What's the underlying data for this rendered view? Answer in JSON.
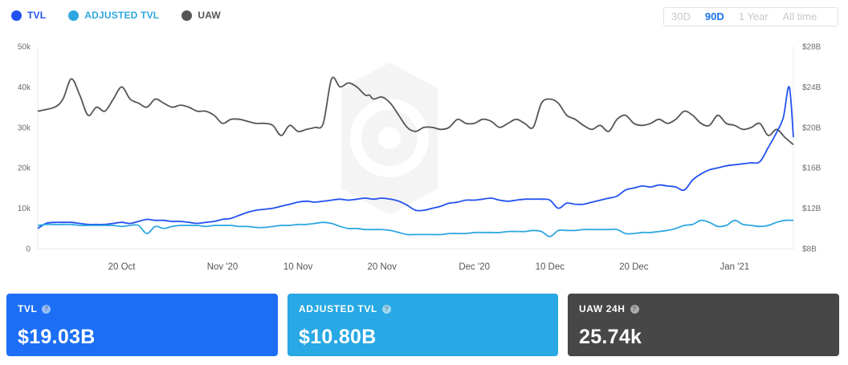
{
  "legend": [
    {
      "label": "TVL",
      "color": "#2251f0"
    },
    {
      "label": "ADJUSTED TVL",
      "color": "#2ea7e0"
    },
    {
      "label": "UAW",
      "color": "#555555"
    }
  ],
  "ranges": [
    {
      "label": "30D",
      "active": false
    },
    {
      "label": "90D",
      "active": true
    },
    {
      "label": "1 Year",
      "active": false
    },
    {
      "label": "All time",
      "active": false
    }
  ],
  "cards": [
    {
      "label": "TVL",
      "value": "$19.03B",
      "color": "#1c6ff5"
    },
    {
      "label": "ADJUSTED TVL",
      "value": "$10.80B",
      "color": "#28a8e4"
    },
    {
      "label": "UAW 24H",
      "value": "25.74k",
      "color": "#474747"
    }
  ],
  "chart_data": {
    "type": "line",
    "x_ticks": [
      {
        "label": "20 Oct",
        "day": 10
      },
      {
        "label": "Nov '20",
        "day": 22
      },
      {
        "label": "10 Nov",
        "day": 31
      },
      {
        "label": "20 Nov",
        "day": 41
      },
      {
        "label": "Dec '20",
        "day": 52
      },
      {
        "label": "10 Dec",
        "day": 61
      },
      {
        "label": "20 Dec",
        "day": 71
      },
      {
        "label": "Jan '21",
        "day": 83
      }
    ],
    "x_range": [
      0,
      90
    ],
    "left_axis": {
      "ticks": [
        "0",
        "10k",
        "20k",
        "30k",
        "40k",
        "50k"
      ],
      "range": [
        0,
        50000
      ]
    },
    "right_axis": {
      "ticks": [
        "$8B",
        "$12B",
        "$16B",
        "$20B",
        "$24B",
        "$28B"
      ],
      "range": [
        8,
        28
      ]
    },
    "series": [
      {
        "name": "UAW",
        "axis": "left",
        "color": "#555555",
        "x": [
          0,
          2,
          3,
          4,
          5,
          6,
          7,
          8,
          9,
          10,
          11,
          12,
          13,
          14,
          15,
          16,
          17,
          18,
          19,
          20,
          21,
          22,
          23,
          24,
          25,
          26,
          27,
          28,
          29,
          30,
          31,
          32,
          33,
          34,
          35,
          36,
          37,
          38,
          39,
          39.5,
          40,
          41,
          42,
          43,
          44,
          45,
          46,
          47,
          48,
          49,
          50,
          51,
          52,
          53,
          54,
          55,
          56,
          57,
          58,
          59,
          60,
          61,
          62,
          63,
          64,
          65,
          66,
          67,
          68,
          69,
          70,
          71,
          72,
          73,
          74,
          75,
          76,
          77,
          78,
          79,
          80,
          81,
          82,
          83,
          84,
          85,
          86,
          87,
          88,
          89,
          90
        ],
        "values": [
          34000,
          35000,
          37000,
          42000,
          38000,
          33000,
          35000,
          34000,
          37000,
          40000,
          37000,
          36000,
          35000,
          37000,
          36000,
          35000,
          35500,
          35000,
          34000,
          34000,
          33000,
          31000,
          32000,
          32000,
          31500,
          31000,
          31000,
          30500,
          28000,
          30500,
          29000,
          29500,
          30000,
          31000,
          42000,
          40000,
          41000,
          40000,
          38000,
          38000,
          37000,
          37500,
          36000,
          33000,
          30000,
          29000,
          30000,
          30000,
          29500,
          30000,
          32000,
          31000,
          31000,
          32000,
          31500,
          30000,
          31000,
          32000,
          31000,
          30000,
          36000,
          37000,
          36000,
          33000,
          32000,
          30500,
          29500,
          30500,
          29000,
          32000,
          33000,
          31000,
          30500,
          31000,
          32000,
          31000,
          32000,
          34000,
          33000,
          31000,
          30500,
          33000,
          31000,
          30500,
          29500,
          30000,
          31000,
          28000,
          29500,
          27500,
          25740
        ]
      },
      {
        "name": "TVL",
        "axis": "right",
        "color": "#2251f0",
        "x": [
          0,
          1,
          2,
          3,
          4,
          5,
          6,
          7,
          8,
          9,
          10,
          11,
          12,
          13,
          14,
          15,
          16,
          17,
          18,
          19,
          20,
          21,
          22,
          23,
          24,
          25,
          26,
          27,
          28,
          29,
          30,
          31,
          32,
          33,
          34,
          35,
          36,
          37,
          38,
          39,
          40,
          41,
          42,
          43,
          44,
          45,
          46,
          47,
          48,
          49,
          50,
          51,
          52,
          53,
          54,
          55,
          56,
          57,
          58,
          59,
          60,
          61,
          62,
          63,
          64,
          65,
          66,
          67,
          68,
          69,
          70,
          71,
          72,
          73,
          74,
          75,
          76,
          77,
          78,
          79,
          80,
          81,
          82,
          83,
          84,
          85,
          86,
          87,
          88,
          88.8,
          89.5,
          90
        ],
        "values": [
          10.0,
          10.5,
          10.6,
          10.6,
          10.6,
          10.5,
          10.4,
          10.4,
          10.4,
          10.5,
          10.6,
          10.5,
          10.7,
          10.9,
          10.8,
          10.8,
          10.7,
          10.7,
          10.6,
          10.5,
          10.6,
          10.7,
          10.9,
          11.0,
          11.3,
          11.6,
          11.8,
          11.9,
          12.0,
          12.2,
          12.4,
          12.6,
          12.7,
          12.6,
          12.7,
          12.8,
          12.9,
          12.8,
          12.9,
          13.0,
          12.9,
          13.0,
          12.9,
          12.7,
          12.3,
          11.8,
          11.8,
          12.0,
          12.2,
          12.5,
          12.6,
          12.8,
          12.8,
          12.9,
          13.0,
          12.8,
          12.7,
          12.8,
          12.9,
          12.9,
          12.9,
          12.8,
          12.0,
          12.5,
          12.4,
          12.4,
          12.6,
          12.8,
          13.0,
          13.2,
          13.8,
          14.0,
          14.2,
          14.1,
          14.3,
          14.2,
          14.1,
          13.8,
          14.8,
          15.4,
          15.8,
          16.0,
          16.2,
          16.3,
          16.4,
          16.5,
          16.6,
          18.0,
          19.5,
          21.0,
          24.0,
          19.03
        ]
      },
      {
        "name": "ADJUSTED TVL",
        "axis": "right",
        "color": "#2ea7e0",
        "x": [
          0,
          1,
          2,
          3,
          4,
          5,
          6,
          7,
          8,
          9,
          10,
          11,
          12,
          13,
          14,
          15,
          16,
          17,
          18,
          19,
          20,
          21,
          22,
          23,
          24,
          25,
          26,
          27,
          28,
          29,
          30,
          31,
          32,
          33,
          34,
          35,
          36,
          37,
          38,
          39,
          40,
          41,
          42,
          43,
          44,
          45,
          46,
          47,
          48,
          49,
          50,
          51,
          52,
          53,
          54,
          55,
          56,
          57,
          58,
          59,
          60,
          61,
          62,
          63,
          64,
          65,
          66,
          67,
          68,
          69,
          70,
          71,
          72,
          73,
          74,
          75,
          76,
          77,
          78,
          79,
          80,
          81,
          82,
          83,
          84,
          85,
          86,
          87,
          88,
          89,
          90
        ],
        "values": [
          10.3,
          10.4,
          10.4,
          10.4,
          10.4,
          10.3,
          10.3,
          10.3,
          10.3,
          10.3,
          10.2,
          10.3,
          10.3,
          9.5,
          10.2,
          10.0,
          10.2,
          10.3,
          10.3,
          10.3,
          10.2,
          10.3,
          10.3,
          10.3,
          10.2,
          10.2,
          10.1,
          10.1,
          10.2,
          10.3,
          10.3,
          10.4,
          10.4,
          10.5,
          10.6,
          10.5,
          10.2,
          10.0,
          10.0,
          9.9,
          9.9,
          9.9,
          9.8,
          9.6,
          9.4,
          9.4,
          9.4,
          9.4,
          9.4,
          9.5,
          9.5,
          9.5,
          9.6,
          9.6,
          9.6,
          9.6,
          9.7,
          9.7,
          9.7,
          9.8,
          9.7,
          9.2,
          9.8,
          9.8,
          9.8,
          9.9,
          9.9,
          9.9,
          9.9,
          9.9,
          9.5,
          9.5,
          9.6,
          9.6,
          9.7,
          9.8,
          10.0,
          10.3,
          10.4,
          10.8,
          10.6,
          10.2,
          10.3,
          10.8,
          10.4,
          10.3,
          10.2,
          10.3,
          10.6,
          10.8,
          10.8
        ]
      }
    ]
  }
}
